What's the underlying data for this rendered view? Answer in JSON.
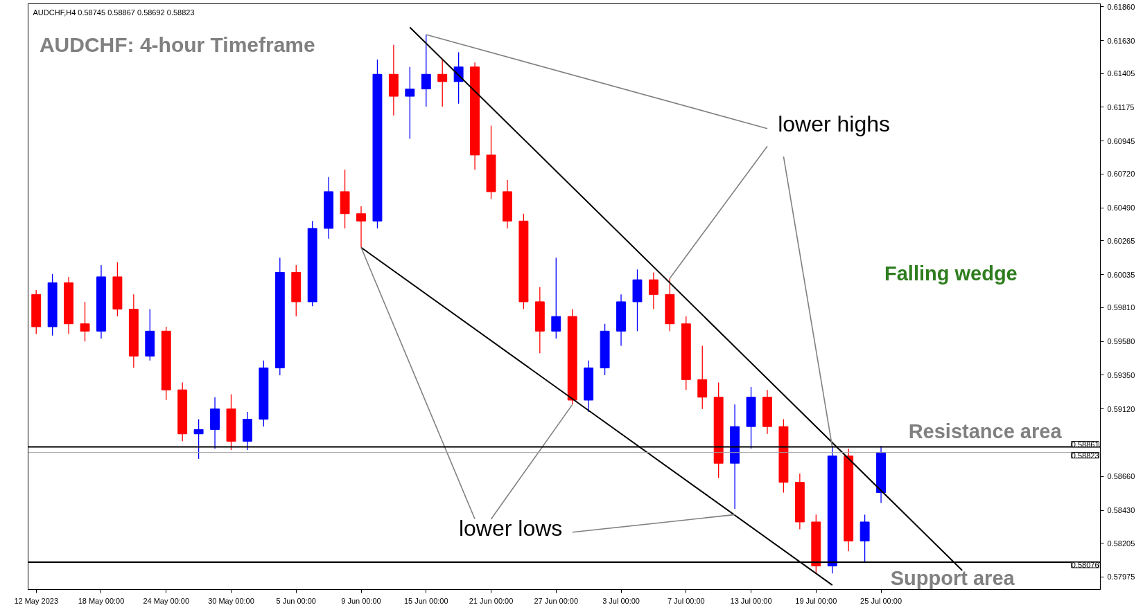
{
  "chart_data": {
    "type": "candlestick",
    "title": "AUDCHF: 4-hour Timeframe",
    "categories": [
      "12 May 2023",
      null,
      null,
      null,
      "18 May 00:00",
      null,
      null,
      null,
      "24 May 00:00",
      null,
      null,
      null,
      "30 May 00:00",
      null,
      null,
      null,
      "5 Jun 00:00",
      null,
      null,
      null,
      "9 Jun 00:00",
      null,
      null,
      null,
      "15 Jun 00:00",
      null,
      null,
      null,
      "21 Jun 00:00",
      null,
      null,
      null,
      "27 Jun 00:00",
      null,
      null,
      null,
      "3 Jul 00:00",
      null,
      null,
      null,
      "7 Jul 00:00",
      null,
      null,
      null,
      "13 Jul 00:00",
      null,
      null,
      null,
      "19 Jul 00:00",
      null,
      null,
      null,
      "25 Jul 00:00",
      null,
      null,
      null,
      null,
      null,
      null,
      null,
      null,
      null,
      null,
      null,
      null,
      null
    ],
    "ohlc": [
      [
        0.599,
        0.5993,
        0.5963,
        0.5968
      ],
      [
        0.5968,
        0.6004,
        0.5962,
        0.5998
      ],
      [
        0.5998,
        0.6002,
        0.5963,
        0.597
      ],
      [
        0.597,
        0.5985,
        0.5958,
        0.5965
      ],
      [
        0.5965,
        0.601,
        0.596,
        0.6002
      ],
      [
        0.6002,
        0.6012,
        0.5975,
        0.598
      ],
      [
        0.598,
        0.599,
        0.594,
        0.5948
      ],
      [
        0.5948,
        0.598,
        0.5945,
        0.5965
      ],
      [
        0.5965,
        0.5968,
        0.5918,
        0.5925
      ],
      [
        0.5925,
        0.593,
        0.589,
        0.5895
      ],
      [
        0.5895,
        0.5905,
        0.5878,
        0.5898
      ],
      [
        0.5898,
        0.592,
        0.5885,
        0.5912
      ],
      [
        0.5912,
        0.5922,
        0.5884,
        0.589
      ],
      [
        0.589,
        0.591,
        0.5884,
        0.5905
      ],
      [
        0.5905,
        0.5945,
        0.59,
        0.594
      ],
      [
        0.594,
        0.6015,
        0.5935,
        0.6005
      ],
      [
        0.6005,
        0.601,
        0.5975,
        0.5985
      ],
      [
        0.5985,
        0.604,
        0.5982,
        0.6035
      ],
      [
        0.6035,
        0.607,
        0.6028,
        0.606
      ],
      [
        0.606,
        0.6075,
        0.6035,
        0.6045
      ],
      [
        0.6045,
        0.605,
        0.6022,
        0.604
      ],
      [
        0.604,
        0.615,
        0.6035,
        0.614
      ],
      [
        0.614,
        0.616,
        0.6112,
        0.6125
      ],
      [
        0.6125,
        0.6145,
        0.6096,
        0.613
      ],
      [
        0.613,
        0.6167,
        0.6118,
        0.614
      ],
      [
        0.614,
        0.615,
        0.6118,
        0.6135
      ],
      [
        0.6135,
        0.6155,
        0.612,
        0.6145
      ],
      [
        0.6145,
        0.6148,
        0.6075,
        0.6085
      ],
      [
        0.6085,
        0.6105,
        0.6055,
        0.606
      ],
      [
        0.606,
        0.6068,
        0.6035,
        0.604
      ],
      [
        0.604,
        0.6045,
        0.598,
        0.5985
      ],
      [
        0.5985,
        0.5995,
        0.595,
        0.5965
      ],
      [
        0.5965,
        0.6015,
        0.596,
        0.5975
      ],
      [
        0.5975,
        0.598,
        0.5915,
        0.5918
      ],
      [
        0.5918,
        0.5945,
        0.591,
        0.594
      ],
      [
        0.594,
        0.597,
        0.5935,
        0.5965
      ],
      [
        0.5965,
        0.599,
        0.5955,
        0.5985
      ],
      [
        0.5985,
        0.6007,
        0.5965,
        0.6
      ],
      [
        0.6,
        0.6005,
        0.598,
        0.599
      ],
      [
        0.599,
        0.6001,
        0.5965,
        0.597
      ],
      [
        0.597,
        0.5975,
        0.5925,
        0.5932
      ],
      [
        0.5932,
        0.5955,
        0.5912,
        0.592
      ],
      [
        0.592,
        0.593,
        0.5865,
        0.5875
      ],
      [
        0.5875,
        0.5915,
        0.5844,
        0.59
      ],
      [
        0.59,
        0.5927,
        0.5885,
        0.592
      ],
      [
        0.592,
        0.5925,
        0.5895,
        0.59
      ],
      [
        0.59,
        0.5905,
        0.5855,
        0.5862
      ],
      [
        0.5862,
        0.5868,
        0.583,
        0.5835
      ],
      [
        0.5835,
        0.584,
        0.58,
        0.5805
      ],
      [
        0.5805,
        0.5886,
        0.58,
        0.588
      ],
      [
        0.588,
        0.5885,
        0.5815,
        0.5822
      ],
      [
        0.5822,
        0.584,
        0.5808,
        0.5835
      ],
      [
        0.5855,
        0.58867,
        0.5848,
        0.58823
      ],
      null,
      null,
      null,
      null,
      null,
      null,
      null,
      null,
      null,
      null,
      null,
      null,
      null
    ],
    "colors": [
      "#ff0000",
      "#0000ff",
      "#ff0000",
      "#ff0000",
      "#0000ff",
      "#ff0000",
      "#ff0000",
      "#0000ff",
      "#ff0000",
      "#ff0000",
      "#0000ff",
      "#0000ff",
      "#ff0000",
      "#0000ff",
      "#0000ff",
      "#0000ff",
      "#ff0000",
      "#0000ff",
      "#0000ff",
      "#ff0000",
      "#ff0000",
      "#0000ff",
      "#ff0000",
      "#0000ff",
      "#0000ff",
      "#ff0000",
      "#0000ff",
      "#ff0000",
      "#ff0000",
      "#ff0000",
      "#ff0000",
      "#ff0000",
      "#0000ff",
      "#ff0000",
      "#0000ff",
      "#0000ff",
      "#0000ff",
      "#0000ff",
      "#ff0000",
      "#ff0000",
      "#ff0000",
      "#ff0000",
      "#ff0000",
      "#0000ff",
      "#0000ff",
      "#ff0000",
      "#ff0000",
      "#ff0000",
      "#ff0000",
      "#0000ff",
      "#ff0000",
      "#0000ff",
      "#0000ff",
      null,
      null,
      null,
      null,
      null,
      null,
      null,
      null,
      null,
      null,
      null,
      null,
      null
    ],
    "series": [
      {
        "type": "line",
        "color": "#000000",
        "values": [
          null,
          null,
          null,
          null,
          null,
          null,
          null,
          null,
          null,
          null,
          null,
          null,
          null,
          null,
          null,
          null,
          null,
          null,
          null,
          null,
          null,
          null,
          null,
          0.6172,
          null,
          null,
          null,
          null,
          null,
          null,
          null,
          null,
          null,
          null,
          null,
          null,
          null,
          null,
          null,
          null,
          null,
          null,
          null,
          null,
          null,
          null,
          null,
          null,
          null,
          null,
          null,
          null,
          null,
          null,
          null,
          null,
          null,
          0.5802,
          null,
          null,
          null,
          null,
          null,
          null,
          null,
          null
        ]
      },
      {
        "type": "line",
        "color": "#000000",
        "values": [
          null,
          null,
          null,
          null,
          null,
          null,
          null,
          null,
          null,
          null,
          null,
          null,
          null,
          null,
          null,
          null,
          null,
          null,
          null,
          null,
          0.6022,
          null,
          null,
          null,
          null,
          null,
          null,
          null,
          null,
          null,
          null,
          null,
          null,
          null,
          null,
          null,
          null,
          null,
          null,
          null,
          null,
          null,
          null,
          null,
          null,
          null,
          null,
          null,
          null,
          0.5792,
          null,
          null,
          null,
          null,
          null,
          null,
          null,
          null,
          null,
          null,
          null,
          null,
          null,
          null,
          null,
          null
        ]
      },
      {
        "type": "line",
        "color": "#808080",
        "values": [
          null,
          null,
          null,
          null,
          null,
          null,
          null,
          null,
          null,
          null,
          null,
          null,
          null,
          null,
          null,
          null,
          null,
          null,
          null,
          null,
          null,
          null,
          null,
          null,
          0.6167,
          null,
          null,
          null,
          null,
          null,
          null,
          null,
          null,
          null,
          null,
          null,
          null,
          null,
          null,
          null,
          null,
          null,
          null,
          null,
          null,
          0.6103,
          null,
          null,
          null,
          null,
          null,
          null,
          null,
          null,
          null,
          null,
          null,
          null,
          null,
          null,
          null,
          null,
          null,
          null,
          null,
          null
        ]
      },
      {
        "type": "line",
        "color": "#808080",
        "values": [
          null,
          null,
          null,
          null,
          null,
          null,
          null,
          null,
          null,
          null,
          null,
          null,
          null,
          null,
          null,
          null,
          null,
          null,
          null,
          null,
          null,
          null,
          null,
          null,
          null,
          null,
          null,
          null,
          null,
          null,
          null,
          null,
          null,
          null,
          null,
          null,
          null,
          null,
          null,
          0.6001,
          null,
          null,
          null,
          null,
          null,
          0.6091,
          null,
          null,
          null,
          null,
          null,
          null,
          null,
          null,
          null,
          null,
          null,
          null,
          null,
          null,
          null,
          null,
          null,
          null,
          null,
          null
        ]
      },
      {
        "type": "line",
        "color": "#808080",
        "values": [
          null,
          null,
          null,
          null,
          null,
          null,
          null,
          null,
          null,
          null,
          null,
          null,
          null,
          null,
          null,
          null,
          null,
          null,
          null,
          null,
          null,
          null,
          null,
          null,
          null,
          null,
          null,
          null,
          null,
          null,
          null,
          null,
          null,
          null,
          null,
          null,
          null,
          null,
          null,
          null,
          null,
          null,
          null,
          null,
          null,
          null,
          0.6084,
          null,
          null,
          0.5886,
          null,
          null,
          null,
          null,
          null,
          null,
          null,
          null,
          null,
          null,
          null,
          null,
          null,
          null,
          null,
          null
        ]
      },
      {
        "type": "line",
        "color": "#808080",
        "values": [
          null,
          null,
          null,
          null,
          null,
          null,
          null,
          null,
          null,
          null,
          null,
          null,
          null,
          null,
          null,
          null,
          null,
          null,
          null,
          null,
          0.6022,
          null,
          null,
          null,
          null,
          null,
          null,
          0.5837,
          null,
          null,
          null,
          null,
          null,
          null,
          null,
          null,
          null,
          null,
          null,
          null,
          null,
          null,
          null,
          null,
          null,
          null,
          null,
          null,
          null,
          null,
          null,
          null,
          null,
          null,
          null,
          null,
          null,
          null,
          null,
          null,
          null,
          null,
          null,
          null,
          null,
          null
        ]
      },
      {
        "type": "line",
        "color": "#808080",
        "values": [
          null,
          null,
          null,
          null,
          null,
          null,
          null,
          null,
          null,
          null,
          null,
          null,
          null,
          null,
          null,
          null,
          null,
          null,
          null,
          null,
          null,
          null,
          null,
          null,
          null,
          null,
          null,
          null,
          0.5837,
          null,
          null,
          null,
          null,
          0.5915,
          null,
          null,
          null,
          null,
          null,
          null,
          null,
          null,
          null,
          null,
          null,
          null,
          null,
          null,
          null,
          null,
          null,
          null,
          null,
          null,
          null,
          null,
          null,
          null,
          null,
          null,
          null,
          null,
          null,
          null,
          null,
          null
        ]
      },
      {
        "type": "line",
        "color": "#808080",
        "values": [
          null,
          null,
          null,
          null,
          null,
          null,
          null,
          null,
          null,
          null,
          null,
          null,
          null,
          null,
          null,
          null,
          null,
          null,
          null,
          null,
          null,
          null,
          null,
          null,
          null,
          null,
          null,
          null,
          null,
          null,
          null,
          null,
          null,
          0.5828,
          null,
          null,
          null,
          null,
          null,
          null,
          null,
          null,
          null,
          0.584,
          null,
          null,
          null,
          null,
          null,
          null,
          null,
          null,
          null,
          null,
          null,
          null,
          null,
          null,
          null,
          null,
          null,
          null,
          null,
          null,
          null,
          null
        ]
      }
    ],
    "ylim": [
      0.5789,
      0.6188
    ],
    "yticks": [
      0.57975,
      0.58205,
      {
        "value": 0.5843,
        "label": "0.58430"
      },
      {
        "value": 0.5866,
        "label": "0.58660"
      },
      {
        "value": 0.5912,
        "label": "0.59120"
      },
      {
        "value": 0.5935,
        "label": "0.59350"
      },
      {
        "value": 0.5958,
        "label": "0.59580"
      },
      {
        "value": 0.5981,
        "label": "0.59810"
      },
      0.60035,
      0.60265,
      {
        "value": 0.6049,
        "label": "0.60490"
      },
      {
        "value": 0.6072,
        "label": "0.60720"
      },
      0.60945,
      0.61175,
      0.61405,
      {
        "value": 0.6163,
        "label": "0.61630"
      },
      {
        "value": 0.6186,
        "label": "0.61860"
      }
    ],
    "ref_lines": [
      {
        "axis": "y",
        "value": 0.58861,
        "label": "0.58861",
        "color": "#000000"
      },
      {
        "axis": "y",
        "value": 0.58823,
        "label": "0.58823",
        "color": "#a0a0a0"
      },
      {
        "axis": "y",
        "value": 0.58076,
        "label": "0.58076",
        "color": "#000000"
      }
    ],
    "annotations": [
      "AUDCHF,H4  0.58745 0.58867 0.58692 0.58823",
      "lower highs",
      "lower lows",
      "Falling wedge",
      "Resistance area",
      "Support area"
    ],
    "grid": false
  }
}
